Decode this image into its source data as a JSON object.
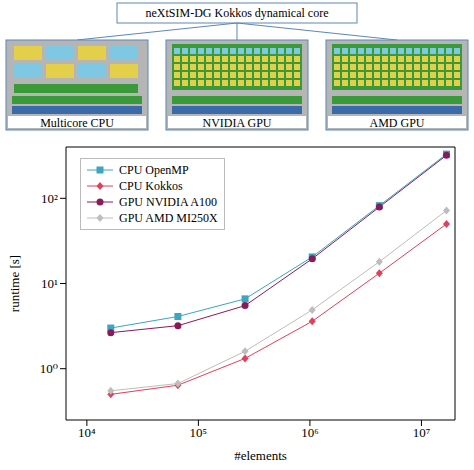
{
  "diagram": {
    "title": "neXtSIM-DG Kokkos dynamical core",
    "nodes": [
      {
        "label": "Multicore CPU"
      },
      {
        "label": "NVIDIA GPU"
      },
      {
        "label": "AMD GPU"
      }
    ]
  },
  "chart_data": {
    "type": "line",
    "x_label": "#elements",
    "y_label": "runtime [s]",
    "log": true,
    "grid": false,
    "legend": "upper left",
    "x": [
      16384,
      65536,
      262144,
      1048576,
      4194304,
      16777216
    ],
    "xlim": [
      6500,
      20000000
    ],
    "xticks": [
      {
        "value": 10000,
        "label": "10⁴"
      },
      {
        "value": 100000,
        "label": "10⁵"
      },
      {
        "value": 1000000,
        "label": "10⁶"
      },
      {
        "value": 10000000,
        "label": "10⁷"
      }
    ],
    "ylim": [
      0.25,
      400
    ],
    "yticks": [
      {
        "value": 1,
        "label": "10⁰"
      },
      {
        "value": 10,
        "label": "10¹"
      },
      {
        "value": 100,
        "label": "10²"
      }
    ],
    "series": [
      {
        "name": "CPU OpenMP",
        "color": "#3aa6c0",
        "marker": "square",
        "values": [
          3.0,
          4.1,
          6.6,
          20.5,
          82,
          330
        ]
      },
      {
        "name": "CPU Kokkos",
        "color": "#e0405a",
        "marker": "diamond",
        "values": [
          0.5,
          0.64,
          1.32,
          3.6,
          13.2,
          50
        ]
      },
      {
        "name": "GPU NVIDIA A100",
        "color": "#8b1a5a",
        "marker": "circle",
        "values": [
          2.65,
          3.2,
          5.5,
          19.5,
          79,
          320
        ]
      },
      {
        "name": "GPU AMD MI250X",
        "color": "#bdbdbd",
        "marker": "diamond",
        "values": [
          0.55,
          0.67,
          1.6,
          4.9,
          18,
          72
        ]
      }
    ]
  }
}
